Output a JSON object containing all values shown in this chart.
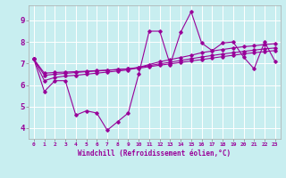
{
  "xlabel": "Windchill (Refroidissement éolien,°C)",
  "background_color": "#c8eef0",
  "line_color": "#990099",
  "grid_color": "#ffffff",
  "x_ticks": [
    0,
    1,
    2,
    3,
    4,
    5,
    6,
    7,
    8,
    9,
    10,
    11,
    12,
    13,
    14,
    15,
    16,
    17,
    18,
    19,
    20,
    21,
    22,
    23
  ],
  "y_ticks": [
    4,
    5,
    6,
    7,
    8,
    9
  ],
  "xlim": [
    -0.5,
    23.5
  ],
  "ylim": [
    3.5,
    9.7
  ],
  "series": [
    [
      7.2,
      5.7,
      6.2,
      6.2,
      4.6,
      4.8,
      4.7,
      3.9,
      4.3,
      4.7,
      6.5,
      8.5,
      8.5,
      6.95,
      8.45,
      9.4,
      7.95,
      7.6,
      7.95,
      8.0,
      7.3,
      6.75,
      8.0,
      7.1
    ],
    [
      7.2,
      6.55,
      6.58,
      6.6,
      6.62,
      6.64,
      6.67,
      6.69,
      6.72,
      6.75,
      6.78,
      6.85,
      6.92,
      6.98,
      7.05,
      7.12,
      7.18,
      7.25,
      7.32,
      7.38,
      7.45,
      7.5,
      7.55,
      7.6
    ],
    [
      7.2,
      6.45,
      6.5,
      6.54,
      6.58,
      6.62,
      6.65,
      6.68,
      6.72,
      6.75,
      6.82,
      6.9,
      6.98,
      7.06,
      7.14,
      7.22,
      7.3,
      7.37,
      7.44,
      7.5,
      7.56,
      7.62,
      7.68,
      7.72
    ],
    [
      7.2,
      6.2,
      6.35,
      6.42,
      6.45,
      6.5,
      6.55,
      6.6,
      6.65,
      6.7,
      6.82,
      6.95,
      7.08,
      7.18,
      7.28,
      7.38,
      7.5,
      7.58,
      7.65,
      7.72,
      7.78,
      7.82,
      7.88,
      7.92
    ]
  ]
}
